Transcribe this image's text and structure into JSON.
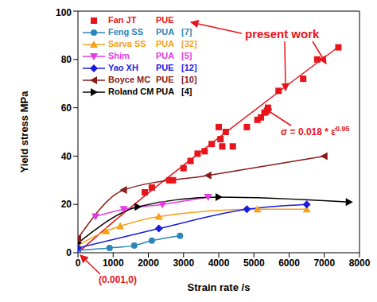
{
  "chart_data": {
    "type": "scatter",
    "x_label": "Strain rate /s",
    "y_label": "Yield stress MPa",
    "xlim": [
      0,
      8000
    ],
    "xticks": [
      0,
      1000,
      2000,
      3000,
      4000,
      5000,
      6000,
      7000,
      8000
    ],
    "ylim": [
      0,
      100
    ],
    "yticks": [
      0,
      20,
      40,
      60,
      80,
      100
    ],
    "legend": "upper left",
    "series": [
      {
        "name": "Fan JT",
        "material": "PUE",
        "color": "#e8141b",
        "marker": "square",
        "line_style": "none",
        "x": [
          0,
          1900,
          2100,
          2600,
          2700,
          3000,
          3200,
          3400,
          3600,
          3800,
          4000,
          4050,
          4100,
          4200,
          4400,
          4800,
          5100,
          5200,
          5300,
          5400,
          5700,
          6400,
          6800,
          7400
        ],
        "values": [
          0,
          25,
          27,
          30,
          30,
          35,
          38,
          41,
          42,
          45,
          52,
          47,
          44,
          50,
          44,
          52,
          55,
          56,
          58,
          60,
          67,
          72,
          80,
          85
        ]
      },
      {
        "name": "Feng SS",
        "material": "PUA",
        "ref": "[7]",
        "color": "#2a86b8",
        "marker": "circle",
        "line_style": "solid",
        "x": [
          0,
          900,
          1600,
          2100,
          2900
        ],
        "values": [
          1,
          2,
          3,
          5,
          7
        ]
      },
      {
        "name": "Sarva SS",
        "material": "PUA",
        "ref": "[32]",
        "color": "#f5a21b",
        "marker": "triangle-up",
        "line_style": "solid",
        "x": [
          0,
          800,
          1200,
          2300,
          5100,
          6500
        ],
        "values": [
          3,
          9,
          11,
          15,
          18,
          18
        ]
      },
      {
        "name": "Shim",
        "material": "PUA",
        "ref": "[5]",
        "color": "#e03ce0",
        "marker": "triangle-down",
        "line_style": "solid",
        "x": [
          500,
          1300,
          2400,
          3700
        ],
        "values": [
          15,
          18,
          20,
          23
        ]
      },
      {
        "name": "Yao XH",
        "material": "PUE",
        "ref": "[12]",
        "color": "#1a1ae0",
        "marker": "diamond",
        "line_style": "solid",
        "x": [
          0,
          2300,
          4800,
          6500
        ],
        "values": [
          2,
          10,
          18,
          20
        ]
      },
      {
        "name": "Boyce MC",
        "material": "PUE",
        "ref": "[10]",
        "color": "#8b1a1a",
        "marker": "triangle-left",
        "line_style": "solid",
        "x": [
          0,
          1300,
          3700,
          7000
        ],
        "values": [
          6,
          26,
          32,
          40
        ]
      },
      {
        "name": "Roland CM",
        "material": "PUA",
        "ref": "[4]",
        "color": "#000000",
        "marker": "triangle-right",
        "line_style": "solid",
        "x": [
          0,
          1700,
          4000,
          7700
        ],
        "values": [
          4,
          19,
          23,
          21
        ]
      }
    ],
    "fit": {
      "color": "#e8141b",
      "line_style": "solid",
      "x": [
        0,
        1000,
        2000,
        4000,
        6000,
        7400
      ],
      "values": [
        0,
        12.7,
        24.7,
        47.6,
        69.9,
        85.2
      ]
    },
    "annotations": [
      {
        "text": "present work"
      },
      {
        "text": "σ = 0.018 * ε̇",
        "superscript": "0.95"
      },
      {
        "text": "(0.001,0)"
      }
    ]
  }
}
